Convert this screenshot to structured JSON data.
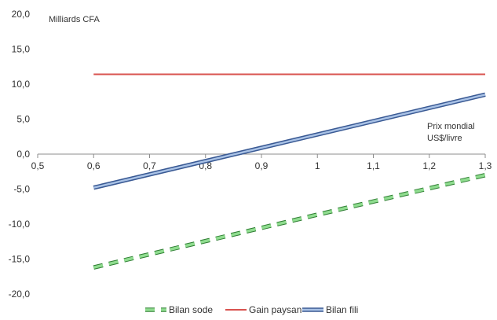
{
  "chart_data": {
    "type": "line",
    "ylabel": "Milliards CFA",
    "xlabel_lines": [
      "Prix mondial",
      "US$/livre"
    ],
    "xlim": [
      0.5,
      1.3
    ],
    "ylim": [
      -20,
      20
    ],
    "x_ticks": [
      0.5,
      0.6,
      0.7,
      0.8,
      0.9,
      1.0,
      1.1,
      1.2,
      1.3
    ],
    "x_tick_labels": [
      "0,5",
      "0,6",
      "0,7",
      "0,8",
      "0,9",
      "1",
      "1,1",
      "1,2",
      "1,3"
    ],
    "y_ticks": [
      20,
      15,
      10,
      5,
      0,
      -5,
      -10,
      -15,
      -20
    ],
    "y_tick_labels": [
      "20,0",
      "15,0",
      "10,0",
      "5,0",
      "0,0",
      "-5,0",
      "-10,0",
      "-15,0",
      "-20,0"
    ],
    "legend_position": "bottom",
    "series": [
      {
        "name": "Bilan sode",
        "style": "dashed",
        "color": "#5cbf5c",
        "x": [
          0.6,
          1.3
        ],
        "y": [
          -16.2,
          -3.0
        ]
      },
      {
        "name": "Gain paysan",
        "style": "solid",
        "color": "#d9534f",
        "x": [
          0.6,
          1.3
        ],
        "y": [
          11.4,
          11.4
        ]
      },
      {
        "name": "Bilan fili",
        "style": "double",
        "color": "#4f6fa8",
        "x": [
          0.6,
          1.3
        ],
        "y": [
          -4.8,
          8.5
        ]
      }
    ]
  }
}
